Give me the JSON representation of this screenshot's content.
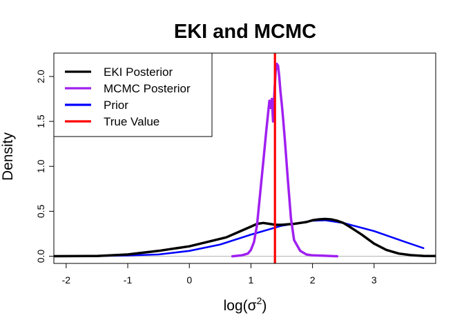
{
  "chart_data": {
    "type": "line",
    "title": "EKI and MCMC",
    "xlabel": "log(σ²)",
    "xlabel_base": "log(σ",
    "xlabel_sup": "2",
    "xlabel_close": ")",
    "ylabel": "Density",
    "xlim": [
      -2.2,
      4.0
    ],
    "ylim": [
      -0.08,
      2.26
    ],
    "x_ticks": [
      -2,
      -1,
      0,
      1,
      2,
      3
    ],
    "x_tick_labels": [
      "-2",
      "-1",
      "0",
      "1",
      "2",
      "3"
    ],
    "y_ticks": [
      0.0,
      0.5,
      1.0,
      1.5,
      2.0
    ],
    "y_tick_labels": [
      "0.0",
      "0.5",
      "1.0",
      "1.5",
      "2.0"
    ],
    "legend_position": "top-left",
    "baseline": 0,
    "true_value": 1.39,
    "series": [
      {
        "name": "EKI Posterior",
        "color": "#000000",
        "width": 3.5,
        "x": [
          -2.3,
          -1.5,
          -1.0,
          -0.5,
          0.0,
          0.3,
          0.6,
          0.8,
          1.0,
          1.1,
          1.2,
          1.3,
          1.4,
          1.5,
          1.6,
          1.7,
          1.8,
          1.9,
          2.0,
          2.1,
          2.2,
          2.3,
          2.4,
          2.5,
          2.6,
          2.8,
          3.0,
          3.2,
          3.4,
          3.6,
          3.8,
          4.0
        ],
        "y": [
          0.0,
          0.003,
          0.02,
          0.06,
          0.11,
          0.16,
          0.21,
          0.27,
          0.33,
          0.36,
          0.37,
          0.36,
          0.35,
          0.35,
          0.355,
          0.36,
          0.37,
          0.38,
          0.4,
          0.41,
          0.415,
          0.41,
          0.395,
          0.37,
          0.33,
          0.24,
          0.14,
          0.07,
          0.03,
          0.012,
          0.004,
          0.002
        ]
      },
      {
        "name": "MCMC Posterior",
        "color": "#a020f0",
        "width": 3.5,
        "x": [
          0.7,
          0.85,
          0.95,
          1.0,
          1.05,
          1.1,
          1.15,
          1.2,
          1.25,
          1.28,
          1.3,
          1.32,
          1.34,
          1.36,
          1.38,
          1.4,
          1.42,
          1.44,
          1.46,
          1.48,
          1.5,
          1.52,
          1.55,
          1.6,
          1.65,
          1.7,
          1.8,
          1.9,
          2.0,
          2.2,
          2.4
        ],
        "y": [
          0.0,
          0.01,
          0.03,
          0.07,
          0.16,
          0.35,
          0.7,
          1.05,
          1.4,
          1.6,
          1.73,
          1.65,
          1.75,
          1.5,
          1.8,
          2.05,
          2.14,
          2.12,
          2.0,
          1.83,
          1.7,
          1.55,
          1.3,
          0.85,
          0.42,
          0.18,
          0.06,
          0.02,
          0.01,
          0.005,
          0.0
        ]
      },
      {
        "name": "Prior",
        "color": "#0000ff",
        "width": 2.6,
        "x": [
          -2.1,
          -1.5,
          -1.0,
          -0.5,
          0.0,
          0.5,
          1.0,
          1.5,
          2.0,
          2.2,
          2.5,
          3.0,
          3.5,
          3.8
        ],
        "y": [
          0.0,
          0.003,
          0.008,
          0.02,
          0.06,
          0.13,
          0.24,
          0.34,
          0.395,
          0.4,
          0.37,
          0.28,
          0.16,
          0.09
        ]
      }
    ],
    "legend": [
      {
        "label": "EKI Posterior",
        "color": "#000000"
      },
      {
        "label": "MCMC Posterior",
        "color": "#a020f0"
      },
      {
        "label": "Prior",
        "color": "#0000ff"
      },
      {
        "label": "True Value",
        "color": "#ff0000"
      }
    ]
  }
}
